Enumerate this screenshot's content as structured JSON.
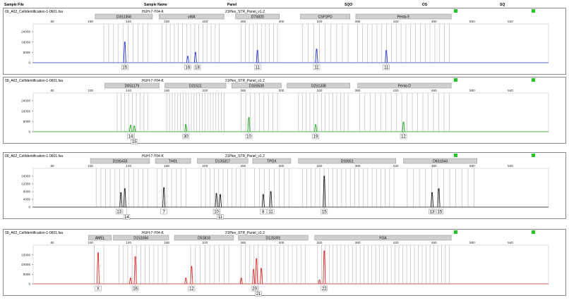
{
  "header": {
    "columns": [
      "Sample File",
      "Sample Name",
      "Panel",
      "SQO",
      "OS",
      "SQ"
    ]
  },
  "chart_data": [
    {
      "type": "line",
      "sample_file": "09_A02_CellIdentification-1-0601.fsa",
      "sample_name": "HUH-7-Y04-K",
      "panel": "21Plex_STR_Panel_v1.2",
      "color": "#2b36c9",
      "xlim": [
        40,
        580
      ],
      "x_ticks": [
        60,
        100,
        140,
        180,
        220,
        260,
        300,
        340,
        380,
        420,
        460,
        500,
        540
      ],
      "ylim": [
        0,
        30000
      ],
      "y_ticks": [
        0,
        8000,
        16000,
        24000
      ],
      "y_tick_labels": [
        "0",
        "8000",
        "16000",
        "24000"
      ],
      "markers": [
        {
          "name": "D3S1358",
          "start": 105,
          "end": 165
        },
        {
          "name": "vWA",
          "start": 172,
          "end": 240
        },
        {
          "name": "D7S820",
          "start": 252,
          "end": 298
        },
        {
          "name": "CSF1PO",
          "start": 320,
          "end": 372
        },
        {
          "name": "Penta E",
          "start": 378,
          "end": 478
        }
      ],
      "bins": [
        {
          "start": 114,
          "end": 160,
          "count": 10
        },
        {
          "start": 175,
          "end": 235,
          "count": 15
        },
        {
          "start": 258,
          "end": 296,
          "count": 10
        },
        {
          "start": 322,
          "end": 370,
          "count": 9
        },
        {
          "start": 380,
          "end": 476,
          "count": 20
        }
      ],
      "peaks": [
        {
          "x": 136,
          "height": 16000,
          "label": "15"
        },
        {
          "x": 202,
          "height": 5000,
          "label": "16"
        },
        {
          "x": 210,
          "height": 8000,
          "label": "18"
        },
        {
          "x": 275,
          "height": 9500,
          "label": "11"
        },
        {
          "x": 337,
          "height": 10500,
          "label": "11"
        },
        {
          "x": 410,
          "height": 9500,
          "label": "11"
        }
      ],
      "labels": [
        {
          "x": 136,
          "text": "15",
          "row": 0
        },
        {
          "x": 202,
          "text": "16",
          "row": 0
        },
        {
          "x": 212,
          "text": "18",
          "row": 0
        },
        {
          "x": 275,
          "text": "11",
          "row": 0
        },
        {
          "x": 337,
          "text": "11",
          "row": 0
        },
        {
          "x": 410,
          "text": "11",
          "row": 0
        }
      ]
    },
    {
      "type": "line",
      "sample_file": "09_A02_CellIdentification-1-0601.fsa",
      "sample_name": "HUH-7-Y04-K",
      "panel": "21Plex_STR_Panel_v1.2",
      "color": "#1aa81a",
      "xlim": [
        40,
        580
      ],
      "x_ticks": [
        60,
        100,
        140,
        180,
        220,
        260,
        300,
        340,
        380,
        420,
        460,
        500,
        540
      ],
      "ylim": [
        0,
        30000
      ],
      "y_ticks": [
        0,
        8000,
        16000,
        24000
      ],
      "y_tick_labels": [
        "0",
        "8000",
        "16000",
        "24000"
      ],
      "markers": [
        {
          "name": "D8S1179",
          "start": 115,
          "end": 172
        },
        {
          "name": "D21S11",
          "start": 178,
          "end": 242
        },
        {
          "name": "D16S539",
          "start": 248,
          "end": 300
        },
        {
          "name": "D2S1338",
          "start": 306,
          "end": 372
        },
        {
          "name": "Penta D",
          "start": 380,
          "end": 478
        }
      ],
      "bins": [
        {
          "start": 128,
          "end": 160,
          "count": 9
        },
        {
          "start": 180,
          "end": 240,
          "count": 22
        },
        {
          "start": 258,
          "end": 296,
          "count": 9
        },
        {
          "start": 318,
          "end": 370,
          "count": 14
        },
        {
          "start": 382,
          "end": 476,
          "count": 18
        }
      ],
      "peaks": [
        {
          "x": 142,
          "height": 5000,
          "label": "14"
        },
        {
          "x": 146,
          "height": 4500,
          "label": "15"
        },
        {
          "x": 200,
          "height": 5500,
          "label": "30"
        },
        {
          "x": 266,
          "height": 11000,
          "label": "10"
        },
        {
          "x": 336,
          "height": 5500,
          "label": "19"
        },
        {
          "x": 428,
          "height": 7500,
          "label": "12"
        }
      ],
      "labels": [
        {
          "x": 142,
          "text": "14",
          "row": 0
        },
        {
          "x": 146,
          "text": "15",
          "row": 1
        },
        {
          "x": 200,
          "text": "30",
          "row": 0
        },
        {
          "x": 266,
          "text": "10",
          "row": 0
        },
        {
          "x": 336,
          "text": "19",
          "row": 0
        },
        {
          "x": 428,
          "text": "12",
          "row": 0
        }
      ]
    },
    {
      "type": "line",
      "sample_file": "09_A02_CellIdentification-1-0601.fsa",
      "sample_name": "HUH-7-Y04-K",
      "panel": "21Plex_STR_Panel_v1.2",
      "color": "#1a1a1a",
      "xlim": [
        40,
        580
      ],
      "x_ticks": [
        60,
        100,
        140,
        180,
        220,
        260,
        300,
        340,
        380,
        420,
        460,
        500,
        540
      ],
      "ylim": [
        0,
        20000
      ],
      "y_ticks": [
        0,
        4000,
        8000,
        12000,
        16000
      ],
      "y_tick_labels": [
        "0",
        "4000",
        "8000",
        "12000",
        "16000"
      ],
      "markers": [
        {
          "name": "D19S433",
          "start": 100,
          "end": 162
        },
        {
          "name": "TH01",
          "start": 168,
          "end": 205
        },
        {
          "name": "D13S317",
          "start": 212,
          "end": 265
        },
        {
          "name": "TPOX",
          "start": 270,
          "end": 310
        },
        {
          "name": "D18S51",
          "start": 318,
          "end": 420
        },
        {
          "name": "D6S1043",
          "start": 428,
          "end": 505
        }
      ],
      "bins": [
        {
          "start": 106,
          "end": 160,
          "count": 12
        },
        {
          "start": 170,
          "end": 200,
          "count": 7
        },
        {
          "start": 216,
          "end": 262,
          "count": 11
        },
        {
          "start": 272,
          "end": 308,
          "count": 8
        },
        {
          "start": 322,
          "end": 418,
          "count": 22
        },
        {
          "start": 432,
          "end": 502,
          "count": 12
        }
      ],
      "peaks": [
        {
          "x": 132,
          "height": 7500,
          "label": "13"
        },
        {
          "x": 136,
          "height": 9500,
          "label": "14"
        },
        {
          "x": 177,
          "height": 10000,
          "label": "7"
        },
        {
          "x": 232,
          "height": 7000,
          "label": "10"
        },
        {
          "x": 236,
          "height": 6500,
          "label": "11"
        },
        {
          "x": 281,
          "height": 6500,
          "label": "8"
        },
        {
          "x": 289,
          "height": 8000,
          "label": "11"
        },
        {
          "x": 345,
          "height": 16000,
          "label": "15"
        },
        {
          "x": 458,
          "height": 7500,
          "label": "13"
        },
        {
          "x": 465,
          "height": 9500,
          "label": "15"
        }
      ],
      "labels": [
        {
          "x": 130,
          "text": "13",
          "row": 0
        },
        {
          "x": 138,
          "text": "14",
          "row": 1
        },
        {
          "x": 177,
          "text": "7",
          "row": 0
        },
        {
          "x": 232,
          "text": "10",
          "row": 0
        },
        {
          "x": 236,
          "text": "11",
          "row": 1
        },
        {
          "x": 281,
          "text": "8",
          "row": 0
        },
        {
          "x": 289,
          "text": "11",
          "row": 0
        },
        {
          "x": 345,
          "text": "15",
          "row": 0
        },
        {
          "x": 458,
          "text": "13",
          "row": 0
        },
        {
          "x": 466,
          "text": "15",
          "row": 0
        }
      ]
    },
    {
      "type": "line",
      "sample_file": "09_A02_CellIdentification-1-0601.fsa",
      "sample_name": "HUH-7-Y04-K",
      "panel": "21Plex_STR_Panel_v1.2",
      "color": "#d92b2b",
      "xlim": [
        40,
        580
      ],
      "x_ticks": [
        60,
        100,
        140,
        180,
        220,
        260,
        300,
        340,
        380,
        420,
        460,
        500,
        540
      ],
      "ylim": [
        0,
        20000
      ],
      "y_ticks": [
        0,
        5000,
        10000,
        15000
      ],
      "y_tick_labels": [
        "0",
        "5000",
        "10000",
        "15000"
      ],
      "markers": [
        {
          "name": "AMEL",
          "start": 98,
          "end": 122
        },
        {
          "name": "D1S1656",
          "start": 124,
          "end": 182
        },
        {
          "name": "D5S818",
          "start": 188,
          "end": 250
        },
        {
          "name": "D12S391",
          "start": 255,
          "end": 328
        },
        {
          "name": "FGA",
          "start": 335,
          "end": 478
        }
      ],
      "bins": [
        {
          "start": 104,
          "end": 114,
          "count": 2
        },
        {
          "start": 130,
          "end": 180,
          "count": 12
        },
        {
          "start": 205,
          "end": 245,
          "count": 9
        },
        {
          "start": 258,
          "end": 325,
          "count": 16
        },
        {
          "start": 338,
          "end": 476,
          "count": 35
        }
      ],
      "peaks": [
        {
          "x": 108,
          "height": 16000,
          "label": "X"
        },
        {
          "x": 142,
          "height": 3000,
          "label": ""
        },
        {
          "x": 147,
          "height": 14000,
          "label": "16"
        },
        {
          "x": 200,
          "height": 3000,
          "label": ""
        },
        {
          "x": 206,
          "height": 9000,
          "label": "12"
        },
        {
          "x": 258,
          "height": 3000,
          "label": ""
        },
        {
          "x": 271,
          "height": 7500,
          "label": "20"
        },
        {
          "x": 274,
          "height": 13000,
          "label": "21"
        },
        {
          "x": 279,
          "height": 8000,
          "label": ""
        },
        {
          "x": 340,
          "height": 2000,
          "label": ""
        },
        {
          "x": 345,
          "height": 17000,
          "label": "22"
        }
      ],
      "labels": [
        {
          "x": 108,
          "text": "X",
          "row": 0
        },
        {
          "x": 147,
          "text": "16",
          "row": 0
        },
        {
          "x": 206,
          "text": "12",
          "row": 0
        },
        {
          "x": 272,
          "text": "20",
          "row": 0
        },
        {
          "x": 276,
          "text": "21",
          "row": 1
        },
        {
          "x": 345,
          "text": "22",
          "row": 0
        }
      ]
    }
  ]
}
